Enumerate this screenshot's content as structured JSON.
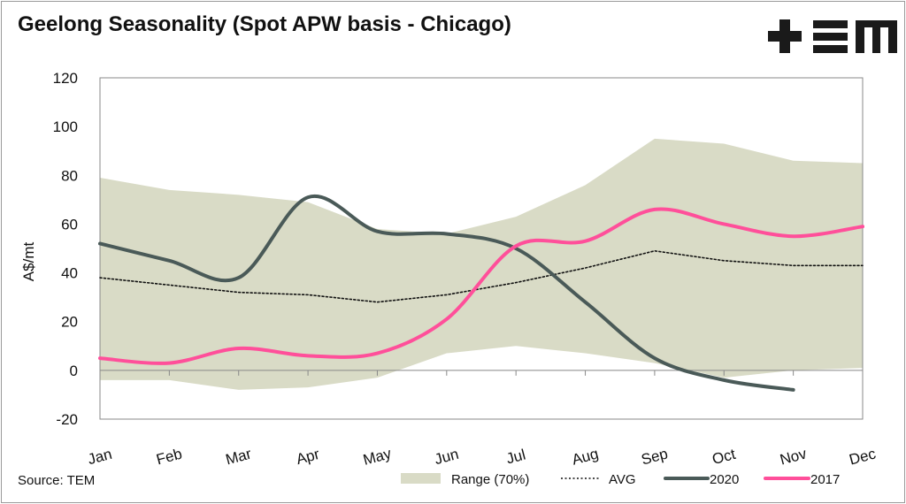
{
  "title": "Geelong Seasonality (Spot APW basis - Chicago)",
  "source": "Source: TEM",
  "logo_text": "+EM",
  "chart_data": {
    "type": "line",
    "title": "Geelong Seasonality (Spot APW basis - Chicago)",
    "xlabel": "",
    "ylabel": "A$/mt",
    "ylim": [
      -20,
      120
    ],
    "yticks": [
      -20,
      0,
      20,
      40,
      60,
      80,
      100,
      120
    ],
    "categories": [
      "Jan",
      "Feb",
      "Mar",
      "Apr",
      "May",
      "Jun",
      "Jul",
      "Aug",
      "Sep",
      "Oct",
      "Nov",
      "Dec"
    ],
    "grid": false,
    "legend_position": "bottom-right",
    "range": {
      "name": "Range (70%)",
      "color": "#d9dbc6",
      "upper": [
        79,
        74,
        72,
        69,
        58,
        56,
        63,
        76,
        95,
        93,
        86,
        85
      ],
      "lower": [
        -4,
        -4,
        -8,
        -7,
        -3,
        7,
        10,
        7,
        3,
        -3,
        0,
        1
      ]
    },
    "series": [
      {
        "name": "AVG",
        "color": "#111111",
        "style": "dotted",
        "values": [
          38,
          35,
          32,
          31,
          28,
          31,
          36,
          42,
          49,
          45,
          43,
          43
        ]
      },
      {
        "name": "2020",
        "color": "#4a5a58",
        "style": "solid",
        "values": [
          52,
          45,
          38,
          71,
          57,
          56,
          50,
          28,
          5,
          -4,
          -8,
          null
        ]
      },
      {
        "name": "2017",
        "color": "#ff4f9a",
        "style": "solid",
        "values": [
          5,
          3,
          9,
          6,
          7,
          21,
          51,
          53,
          66,
          60,
          55,
          59
        ]
      }
    ]
  }
}
